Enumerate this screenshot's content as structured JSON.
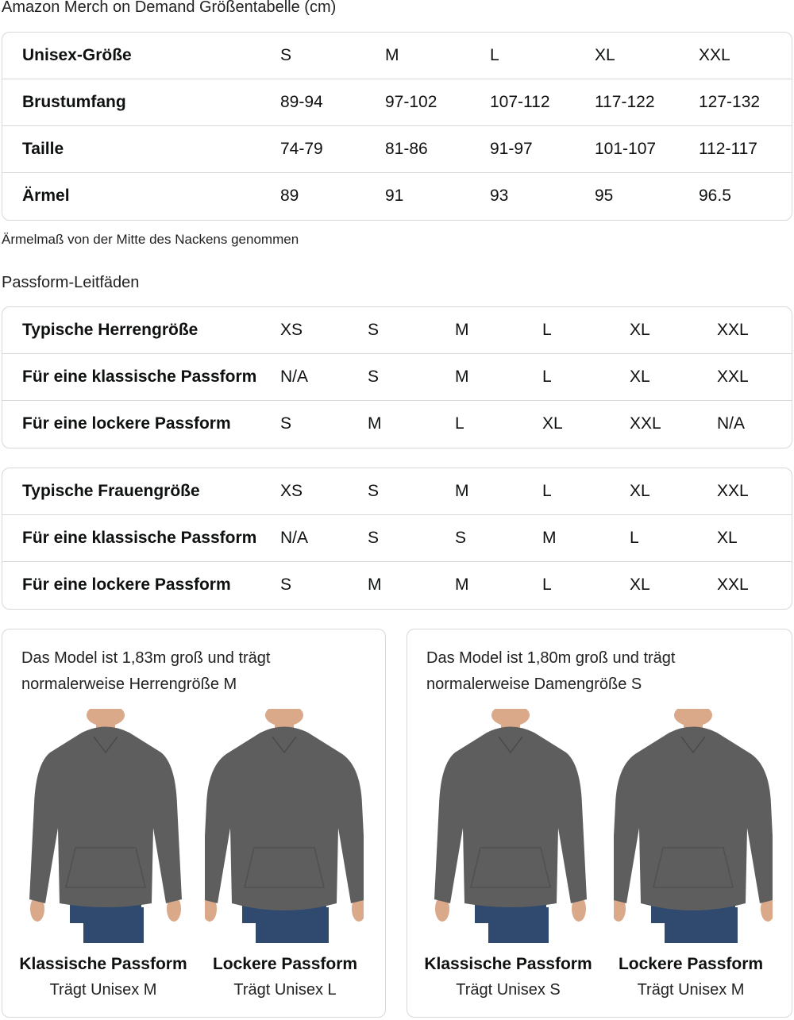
{
  "title": "Amazon Merch on Demand Größentabelle (cm)",
  "size_table": {
    "rows": [
      [
        "Unisex-Größe",
        "S",
        "M",
        "L",
        "XL",
        "XXL"
      ],
      [
        "Brustumfang",
        "89-94",
        "97-102",
        "107-112",
        "117-122",
        "127-132"
      ],
      [
        "Taille",
        "74-79",
        "81-86",
        "91-97",
        "101-107",
        "112-117"
      ],
      [
        "Ärmel",
        "89",
        "91",
        "93",
        "95",
        "96.5"
      ]
    ]
  },
  "note": "Ärmelmaß von der Mitte des Nackens genommen",
  "fit_title": "Passform-Leitfäden",
  "men_table": {
    "rows": [
      [
        "Typische Herrengröße",
        "XS",
        "S",
        "M",
        "L",
        "XL",
        "XXL"
      ],
      [
        "Für eine klassische Passform",
        "N/A",
        "S",
        "M",
        "L",
        "XL",
        "XXL"
      ],
      [
        "Für eine lockere Passform",
        "S",
        "M",
        "L",
        "XL",
        "XXL",
        "N/A"
      ]
    ]
  },
  "women_table": {
    "rows": [
      [
        "Typische Frauengröße",
        "XS",
        "S",
        "M",
        "L",
        "XL",
        "XXL"
      ],
      [
        "Für eine klassische Passform",
        "N/A",
        "S",
        "S",
        "M",
        "L",
        "XL"
      ],
      [
        "Für eine lockere Passform",
        "S",
        "M",
        "M",
        "L",
        "XL",
        "XXL"
      ]
    ]
  },
  "cards": [
    {
      "desc1": "Das Model ist 1,83m groß und trägt",
      "desc2": "normalerweise Herrengröße M",
      "figures": [
        {
          "caption": "Klassische Passform",
          "sub": "Trägt Unisex M"
        },
        {
          "caption": "Lockere Passform",
          "sub": "Trägt Unisex L"
        }
      ]
    },
    {
      "desc1": "Das Model ist 1,80m groß und trägt",
      "desc2": "normalerweise Damengröße S",
      "figures": [
        {
          "caption": "Klassische Passform",
          "sub": "Trägt Unisex S"
        },
        {
          "caption": "Lockere Passform",
          "sub": "Trägt Unisex M"
        }
      ]
    }
  ],
  "colors": {
    "border": "#d5d9d9",
    "hoodie": "#5e5e5e",
    "jeans": "#2f4a6e",
    "skin": "#d9a98a"
  }
}
